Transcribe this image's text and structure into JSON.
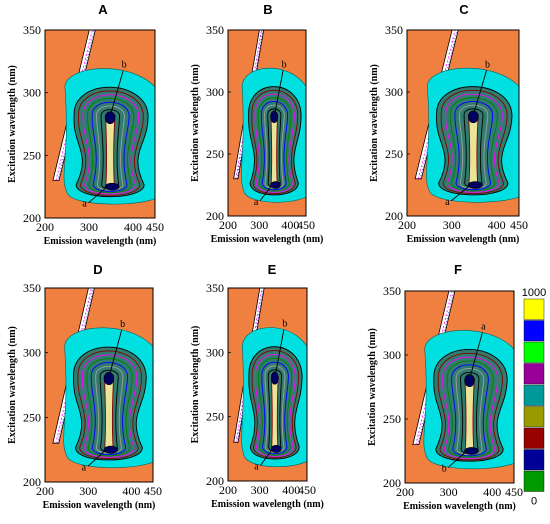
{
  "chart_data": {
    "type": "contour",
    "panels": [
      {
        "title": "A",
        "xlabel": "Emission wavelength (nm)",
        "ylabel": "Excitation wavelength (nm)",
        "xticks": [
          "200",
          "300",
          "400",
          "450"
        ],
        "yticks": [
          "200",
          "250",
          "300",
          "350"
        ],
        "xlim": [
          200,
          450
        ],
        "ylim": [
          200,
          350
        ],
        "peaks": [
          {
            "label": "b",
            "em": 350,
            "ex": 280
          },
          {
            "label": "a",
            "em": 350,
            "ex": 225
          }
        ]
      },
      {
        "title": "B",
        "xlabel": "Emission wavelength (nm)",
        "ylabel": "Excitation wavelength (nm)",
        "xticks": [
          "200",
          "300",
          "400",
          "450"
        ],
        "yticks": [
          "200",
          "250",
          "300",
          "350"
        ],
        "xlim": [
          200,
          450
        ],
        "ylim": [
          200,
          350
        ],
        "peaks": [
          {
            "label": "b",
            "em": 350,
            "ex": 280
          },
          {
            "label": "a",
            "em": 350,
            "ex": 225
          }
        ]
      },
      {
        "title": "C",
        "xlabel": "Emission wavelength (nm)",
        "ylabel": "Excitation wavelength (nm)",
        "xticks": [
          "200",
          "300",
          "400",
          "450"
        ],
        "yticks": [
          "200",
          "250",
          "300",
          "350"
        ],
        "xlim": [
          200,
          450
        ],
        "ylim": [
          200,
          350
        ],
        "peaks": [
          {
            "label": "b",
            "em": 350,
            "ex": 280
          },
          {
            "label": "a",
            "em": 350,
            "ex": 225
          }
        ]
      },
      {
        "title": "D",
        "xlabel": "Emission wavelength (nm)",
        "ylabel": "Excitation wavelength (nm)",
        "xticks": [
          "200",
          "300",
          "400",
          "450"
        ],
        "yticks": [
          "200",
          "250",
          "300",
          "350"
        ],
        "xlim": [
          200,
          450
        ],
        "ylim": [
          200,
          350
        ],
        "peaks": [
          {
            "label": "b",
            "em": 350,
            "ex": 280
          },
          {
            "label": "a",
            "em": 350,
            "ex": 225
          }
        ]
      },
      {
        "title": "E",
        "xlabel": "Emission wavelength (nm)",
        "ylabel": "Excitation wavelength (nm)",
        "xticks": [
          "200",
          "300",
          "400",
          "450"
        ],
        "yticks": [
          "200",
          "250",
          "300",
          "350"
        ],
        "xlim": [
          200,
          450
        ],
        "ylim": [
          200,
          350
        ],
        "peaks": [
          {
            "label": "b",
            "em": 350,
            "ex": 280
          },
          {
            "label": "a",
            "em": 350,
            "ex": 225
          }
        ]
      },
      {
        "title": "F",
        "xlabel": "Emission wavelength (nm)",
        "ylabel": "Excitation wavelength (nm)",
        "xticks": [
          "200",
          "300",
          "400",
          "450"
        ],
        "yticks": [
          "200",
          "250",
          "300",
          "350"
        ],
        "xlim": [
          200,
          450
        ],
        "ylim": [
          200,
          350
        ],
        "peaks": [
          {
            "label": "a",
            "em": 350,
            "ex": 280
          },
          {
            "label": "b",
            "em": 350,
            "ex": 225
          }
        ]
      }
    ],
    "colorbar": {
      "max_label": "1000",
      "min_label": "0",
      "colors": [
        "#ffff00",
        "#0000ff",
        "#00ff00",
        "#990099",
        "#009999",
        "#999900",
        "#990000",
        "#000099",
        "#009900"
      ]
    },
    "colors": {
      "background": "#f08040",
      "outer": "#00e0e0",
      "contour_lines": [
        "#000000",
        "#800000",
        "#ff00ff",
        "#008000",
        "#0000ff",
        "#a0a0a0"
      ],
      "core_fill": "#fff0a0",
      "peak": "#000060"
    }
  }
}
